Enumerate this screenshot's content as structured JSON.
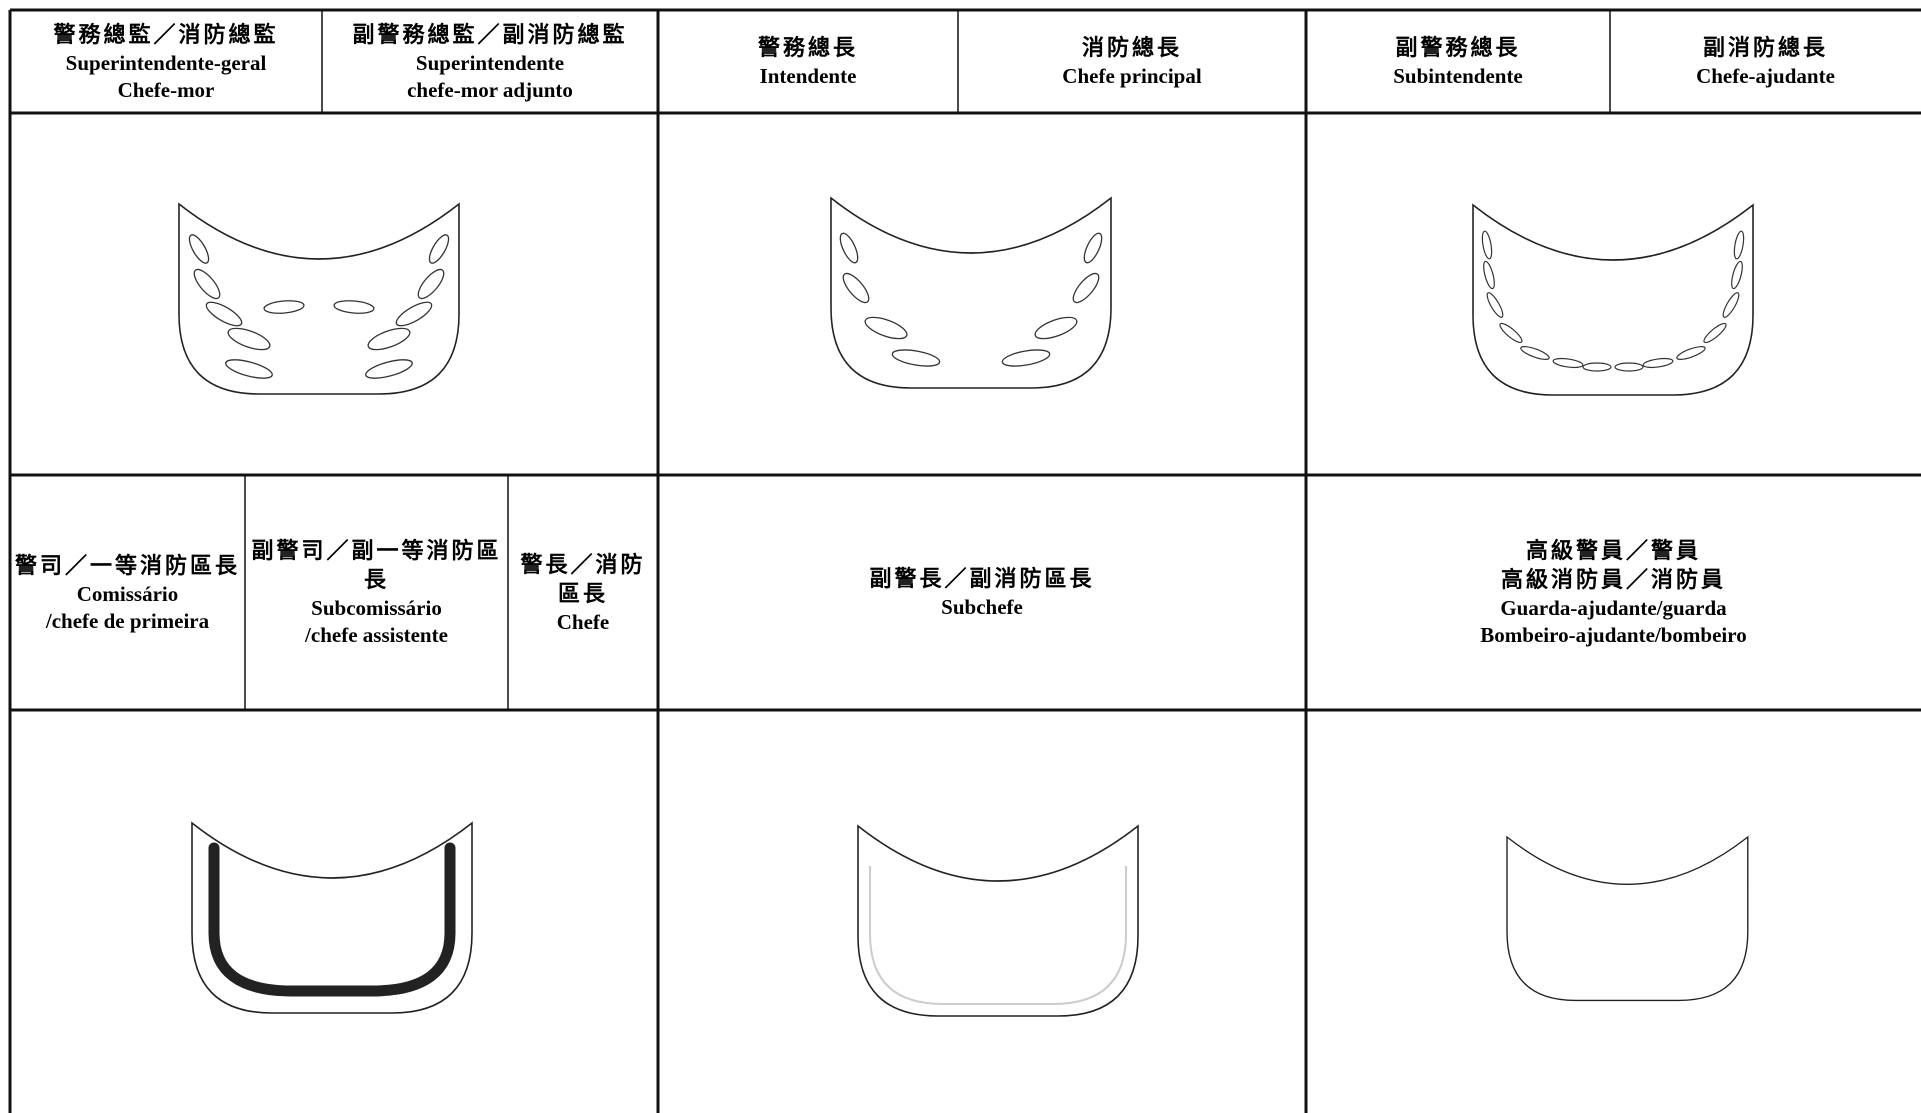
{
  "table": {
    "header1": [
      {
        "zh": "警務總監／消防總監",
        "pt": [
          "Superintendente-geral",
          "Chefe-mor"
        ]
      },
      {
        "zh": "副警務總監／副消防總監",
        "pt": [
          "Superintendente",
          "chefe-mor adjunto"
        ]
      },
      {
        "zh": "警務總長",
        "pt": [
          "Intendente"
        ]
      },
      {
        "zh": "消防總長",
        "pt": [
          "Chefe principal"
        ]
      },
      {
        "zh": "副警務總長",
        "pt": [
          "Subintendente"
        ]
      },
      {
        "zh": "副消防總長",
        "pt": [
          "Chefe-ajudante"
        ]
      }
    ],
    "header2": [
      {
        "zh": [
          "警司／一等消防區長"
        ],
        "pt": [
          "Comissário",
          "/chefe de primeira"
        ]
      },
      {
        "zh": [
          "副警司／副一等消防區長"
        ],
        "pt": [
          "Subcomissário",
          "/chefe assistente"
        ]
      },
      {
        "zh": [
          "警長／消防區長"
        ],
        "pt": [
          "Chefe"
        ]
      },
      {
        "zh": [
          "副警長／副消防區長"
        ],
        "pt": [
          "Subchefe"
        ]
      },
      {
        "zh": [
          "高級警員／警員",
          "高級消防員／消防員"
        ],
        "pt": [
          "Guarda-ajudante/guarda",
          "Bombeiro-ajudante/bombeiro"
        ]
      }
    ]
  }
}
